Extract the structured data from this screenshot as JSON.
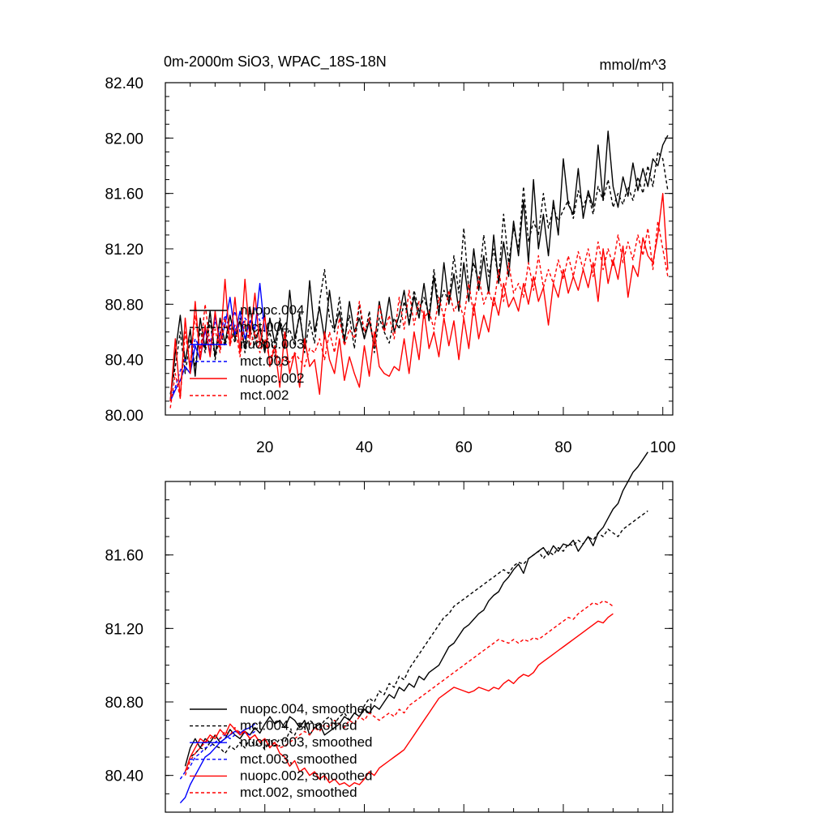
{
  "chart_data": [
    {
      "type": "line",
      "title": "0m-2000m SiO3, WPAC_18S-18N",
      "units": "mmol/m^3",
      "xlim": [
        0,
        102
      ],
      "ylim": [
        80.0,
        82.4
      ],
      "xticks": [
        20,
        40,
        60,
        80,
        100
      ],
      "xtick_labels": [
        "20",
        "40",
        "60",
        "80",
        "100"
      ],
      "yticks": [
        80.0,
        80.4,
        80.8,
        81.2,
        81.6,
        82.0,
        82.4
      ],
      "ytick_labels": [
        "80.00",
        "80.40",
        "80.80",
        "81.20",
        "81.60",
        "82.00",
        "82.40"
      ],
      "legend_position": "lower-left",
      "series": [
        {
          "name": "nuopc.004",
          "color": "#000000",
          "dash": "solid",
          "x_start": 1,
          "values": [
            80.1,
            80.45,
            80.72,
            80.38,
            80.62,
            80.28,
            80.7,
            80.48,
            80.75,
            80.42,
            80.7,
            80.52,
            80.72,
            80.55,
            80.68,
            80.48,
            80.78,
            80.55,
            80.62,
            80.45,
            80.7,
            80.52,
            80.68,
            80.48,
            80.9,
            80.55,
            80.72,
            80.48,
            80.97,
            80.6,
            80.78,
            80.55,
            80.9,
            80.62,
            80.75,
            80.52,
            80.82,
            80.6,
            80.7,
            80.55,
            80.68,
            80.5,
            80.82,
            80.62,
            80.85,
            80.6,
            80.72,
            80.9,
            80.65,
            80.86,
            80.7,
            80.95,
            80.68,
            81.0,
            80.72,
            81.1,
            80.8,
            81.02,
            80.75,
            81.1,
            80.82,
            81.2,
            80.9,
            81.15,
            80.88,
            81.3,
            80.95,
            81.25,
            81.0,
            81.4,
            81.15,
            81.55,
            81.1,
            81.7,
            81.2,
            81.45,
            81.15,
            81.55,
            81.3,
            81.85,
            81.52,
            81.45,
            81.78,
            81.42,
            81.62,
            81.5,
            81.95,
            81.55,
            82.05,
            81.65,
            81.5,
            81.72,
            81.58,
            81.82,
            81.62,
            81.78,
            81.65,
            81.85,
            81.8,
            81.95,
            82.02
          ]
        },
        {
          "name": "mct.004",
          "color": "#000000",
          "dash": "dashed",
          "x_start": 1,
          "values": [
            80.15,
            80.35,
            80.6,
            80.3,
            80.55,
            80.35,
            80.62,
            80.45,
            80.68,
            80.4,
            80.6,
            80.5,
            80.65,
            80.52,
            80.7,
            80.45,
            80.62,
            80.5,
            80.65,
            80.48,
            80.6,
            80.42,
            80.7,
            80.55,
            80.62,
            80.5,
            80.75,
            80.45,
            80.68,
            80.52,
            80.82,
            81.05,
            80.7,
            80.6,
            80.85,
            80.55,
            80.72,
            80.48,
            80.8,
            80.55,
            80.75,
            80.45,
            80.7,
            80.6,
            80.52,
            80.7,
            80.62,
            80.82,
            80.68,
            80.9,
            80.75,
            80.85,
            80.72,
            81.05,
            80.78,
            80.9,
            80.82,
            81.15,
            80.88,
            81.35,
            80.9,
            81.1,
            80.95,
            81.3,
            81.0,
            81.2,
            80.98,
            81.45,
            81.1,
            81.35,
            81.2,
            81.65,
            81.25,
            81.4,
            81.3,
            81.6,
            81.35,
            81.5,
            81.4,
            81.48,
            81.55,
            81.42,
            81.62,
            81.5,
            81.6,
            81.45,
            81.65,
            81.55,
            81.7,
            81.5,
            81.6,
            81.52,
            81.65,
            81.55,
            81.72,
            81.6,
            81.8,
            81.65,
            81.9,
            81.85,
            81.62
          ]
        },
        {
          "name": "nuopc.003",
          "color": "#0000ff",
          "dash": "solid",
          "x_start": 1,
          "values": [
            80.1,
            80.18,
            80.25,
            80.35,
            80.3,
            80.5,
            80.4,
            80.62,
            80.45,
            80.72,
            80.52,
            80.65,
            80.85,
            80.58,
            80.75,
            80.55,
            80.68,
            80.62,
            80.95,
            80.6
          ]
        },
        {
          "name": "mct.003",
          "color": "#0000ff",
          "dash": "dashed",
          "x_start": 1,
          "values": [
            80.12,
            80.2,
            80.32,
            80.4,
            80.38,
            80.55,
            80.48,
            80.6,
            80.52,
            80.68,
            80.58,
            80.72,
            80.62,
            80.75,
            80.6,
            80.7,
            80.65,
            80.78,
            80.68,
            80.72
          ]
        },
        {
          "name": "nuopc.002",
          "color": "#ff0000",
          "dash": "solid",
          "x_start": 1,
          "values": [
            80.1,
            80.55,
            80.12,
            80.7,
            80.3,
            80.82,
            80.4,
            80.65,
            80.42,
            80.75,
            80.48,
            80.98,
            80.5,
            80.85,
            80.45,
            80.98,
            80.55,
            80.88,
            80.5,
            80.72,
            80.35,
            80.5,
            80.2,
            80.6,
            80.3,
            80.45,
            80.2,
            80.55,
            80.35,
            80.4,
            80.15,
            80.6,
            80.4,
            80.3,
            80.55,
            80.25,
            80.42,
            80.3,
            80.2,
            80.5,
            80.28,
            80.6,
            80.35,
            80.3,
            80.28,
            80.35,
            80.32,
            80.55,
            80.3,
            80.6,
            80.4,
            80.75,
            80.48,
            80.6,
            80.42,
            80.7,
            80.5,
            80.68,
            80.4,
            80.7,
            80.48,
            80.8,
            80.55,
            80.72,
            80.6,
            80.85,
            80.72,
            80.95,
            80.78,
            80.85,
            80.75,
            80.95,
            80.8,
            81.0,
            80.82,
            80.92,
            80.65,
            80.95,
            80.85,
            81.05,
            80.88,
            81.0,
            80.9,
            81.05,
            80.92,
            81.1,
            80.82,
            81.2,
            80.95,
            81.12,
            80.98,
            81.22,
            80.85,
            81.08,
            81.0,
            81.28,
            81.15,
            81.1,
            81.3,
            81.6,
            81.05
          ]
        },
        {
          "name": "mct.002",
          "color": "#ff0000",
          "dash": "dashed",
          "x_start": 1,
          "values": [
            80.05,
            80.3,
            80.12,
            80.6,
            80.35,
            80.72,
            80.45,
            80.8,
            80.5,
            80.62,
            80.45,
            80.7,
            80.5,
            80.65,
            80.42,
            80.68,
            80.5,
            80.6,
            80.45,
            80.55,
            80.4,
            80.5,
            80.35,
            80.42,
            80.38,
            80.45,
            80.4,
            80.35,
            80.48,
            80.45,
            80.55,
            80.4,
            80.6,
            80.45,
            80.7,
            80.5,
            80.62,
            80.55,
            80.82,
            80.6,
            80.7,
            80.5,
            80.8,
            80.6,
            80.72,
            80.55,
            80.85,
            80.62,
            80.9,
            80.65,
            80.82,
            80.7,
            80.75,
            80.62,
            80.85,
            80.7,
            80.9,
            80.75,
            80.82,
            80.7,
            80.95,
            80.72,
            81.0,
            80.8,
            80.9,
            80.78,
            81.05,
            80.82,
            81.1,
            80.88,
            80.95,
            80.85,
            81.1,
            80.9,
            81.15,
            80.92,
            81.05,
            80.95,
            81.12,
            80.98,
            81.15,
            81.0,
            81.18,
            81.05,
            81.2,
            81.0,
            81.25,
            81.05,
            81.2,
            81.08,
            81.3,
            81.1,
            81.25,
            81.12,
            81.3,
            81.15,
            81.35,
            81.05,
            81.4,
            81.2,
            81.0
          ]
        }
      ]
    },
    {
      "type": "line",
      "xlim": [
        0,
        102
      ],
      "ylim": [
        80.2,
        82.0
      ],
      "xticks": [
        20,
        40,
        60,
        80,
        100
      ],
      "yticks": [
        80.4,
        80.8,
        81.2,
        81.6
      ],
      "ytick_labels": [
        "80.40",
        "80.80",
        "81.20",
        "81.60"
      ],
      "legend_position": "lower-left",
      "series": [
        {
          "name": "nuopc.004, smoothed",
          "color": "#000000",
          "dash": "solid",
          "x_start": 4,
          "values": [
            80.45,
            80.55,
            80.6,
            80.55,
            80.6,
            80.58,
            80.62,
            80.58,
            80.6,
            80.65,
            80.62,
            80.6,
            80.64,
            80.62,
            80.66,
            80.63,
            80.68,
            80.72,
            80.68,
            80.7,
            80.66,
            80.72,
            80.7,
            80.66,
            80.7,
            80.62,
            80.66,
            80.68,
            80.62,
            80.64,
            80.66,
            80.68,
            80.72,
            80.7,
            80.74,
            80.72,
            80.76,
            80.74,
            80.78,
            80.76,
            80.8,
            80.84,
            80.82,
            80.88,
            80.86,
            80.9,
            80.88,
            80.94,
            80.92,
            80.96,
            80.98,
            81.0,
            81.05,
            81.1,
            81.12,
            81.16,
            81.2,
            81.22,
            81.25,
            81.28,
            81.3,
            81.35,
            81.38,
            81.4,
            81.45,
            81.48,
            81.52,
            81.55,
            81.5,
            81.58,
            81.6,
            81.62,
            81.64,
            81.6,
            81.65,
            81.62,
            81.66,
            81.65,
            81.68,
            81.62,
            81.66,
            81.7,
            81.65,
            81.72,
            81.75,
            81.8,
            81.85,
            81.88,
            81.95,
            82.0,
            82.05,
            82.08,
            82.12,
            82.16
          ]
        },
        {
          "name": "mct.004, smoothed",
          "color": "#000000",
          "dash": "dashed",
          "x_start": 4,
          "values": [
            80.42,
            80.5,
            80.52,
            80.55,
            80.54,
            80.58,
            80.56,
            80.55,
            80.52,
            80.56,
            80.54,
            80.58,
            80.55,
            80.6,
            80.56,
            80.58,
            80.54,
            80.6,
            80.56,
            80.6,
            80.58,
            80.64,
            80.62,
            80.68,
            80.66,
            80.7,
            80.68,
            80.66,
            80.7,
            80.72,
            80.68,
            80.72,
            80.74,
            80.7,
            80.74,
            80.72,
            80.78,
            80.82,
            80.8,
            80.86,
            80.84,
            80.9,
            80.88,
            80.94,
            80.92,
            80.98,
            81.02,
            81.06,
            81.1,
            81.14,
            81.18,
            81.22,
            81.26,
            81.28,
            81.32,
            81.34,
            81.36,
            81.38,
            81.4,
            81.42,
            81.44,
            81.46,
            81.48,
            81.5,
            81.52,
            81.5,
            81.54,
            81.56,
            81.55,
            81.58,
            81.6,
            81.62,
            81.58,
            81.62,
            81.6,
            81.64,
            81.62,
            81.66,
            81.65,
            81.68,
            81.66,
            81.7,
            81.68,
            81.72,
            81.7,
            81.74,
            81.72,
            81.7,
            81.74,
            81.76,
            81.78,
            81.8,
            81.82,
            81.84
          ]
        },
        {
          "name": "nuopc.003, smoothed",
          "color": "#0000ff",
          "dash": "solid",
          "x_start": 3,
          "values": [
            80.25,
            80.28,
            80.35,
            80.4,
            80.45,
            80.5,
            80.52,
            80.55,
            80.58,
            80.6,
            80.62,
            80.64,
            80.63,
            80.65,
            80.66,
            80.68
          ]
        },
        {
          "name": "mct.003, smoothed",
          "color": "#0000ff",
          "dash": "dashed",
          "x_start": 3,
          "values": [
            80.38,
            80.42,
            80.45,
            80.5,
            80.52,
            80.55,
            80.56,
            80.58,
            80.6,
            80.62,
            80.6,
            80.62,
            80.64,
            80.63,
            80.62,
            80.64
          ]
        },
        {
          "name": "nuopc.002, smoothed",
          "color": "#ff0000",
          "dash": "solid",
          "x_start": 4,
          "values": [
            80.42,
            80.5,
            80.55,
            80.6,
            80.58,
            80.62,
            80.6,
            80.65,
            80.62,
            80.68,
            80.65,
            80.62,
            80.64,
            80.6,
            80.62,
            80.58,
            80.6,
            80.55,
            80.58,
            80.52,
            80.5,
            80.45,
            80.48,
            80.42,
            80.44,
            80.4,
            80.42,
            80.38,
            80.4,
            80.36,
            80.38,
            80.35,
            80.36,
            80.34,
            80.36,
            80.35,
            80.38,
            80.42,
            80.4,
            80.44,
            80.46,
            80.48,
            80.5,
            80.52,
            80.54,
            80.58,
            80.62,
            80.66,
            80.7,
            80.74,
            80.78,
            80.82,
            80.84,
            80.86,
            80.88,
            80.87,
            80.86,
            80.85,
            80.86,
            80.88,
            80.87,
            80.86,
            80.88,
            80.87,
            80.9,
            80.92,
            80.9,
            80.93,
            80.95,
            80.94,
            80.96,
            81.0,
            81.02,
            81.04,
            81.06,
            81.08,
            81.1,
            81.12,
            81.14,
            81.16,
            81.18,
            81.2,
            81.22,
            81.24,
            81.23,
            81.26,
            81.28
          ]
        },
        {
          "name": "mct.002, smoothed",
          "color": "#ff0000",
          "dash": "dashed",
          "x_start": 4,
          "values": [
            80.4,
            80.48,
            80.52,
            80.55,
            80.58,
            80.6,
            80.62,
            80.6,
            80.64,
            80.62,
            80.66,
            80.63,
            80.64,
            80.6,
            80.62,
            80.58,
            80.6,
            80.56,
            80.58,
            80.55,
            80.56,
            80.58,
            80.6,
            80.62,
            80.64,
            80.62,
            80.66,
            80.64,
            80.68,
            80.66,
            80.7,
            80.68,
            80.66,
            80.7,
            80.68,
            80.72,
            80.7,
            80.74,
            80.72,
            80.7,
            80.72,
            80.74,
            80.72,
            80.76,
            80.74,
            80.78,
            80.8,
            80.82,
            80.84,
            80.86,
            80.88,
            80.9,
            80.92,
            80.94,
            80.96,
            80.98,
            81.0,
            81.02,
            81.04,
            81.06,
            81.08,
            81.1,
            81.12,
            81.14,
            81.13,
            81.12,
            81.14,
            81.12,
            81.14,
            81.13,
            81.15,
            81.14,
            81.16,
            81.18,
            81.2,
            81.22,
            81.24,
            81.26,
            81.25,
            81.28,
            81.3,
            81.32,
            81.34,
            81.33,
            81.35,
            81.34,
            81.32
          ]
        }
      ]
    }
  ]
}
